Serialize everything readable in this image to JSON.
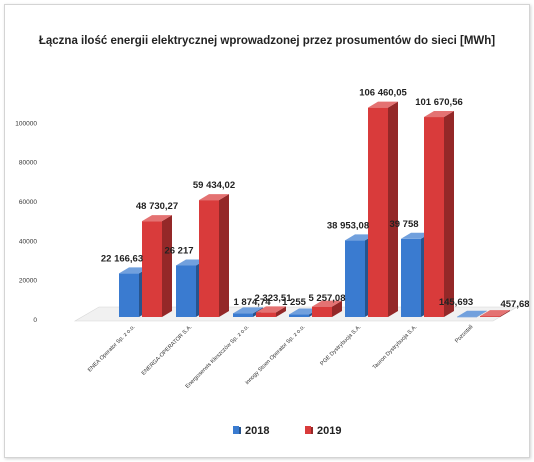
{
  "chart_data": {
    "type": "bar",
    "title": "Łączna ilość energii elektrycznej wprowadzonej przez prosumentów do sieci [MWh]",
    "categories": [
      "ENEA Operator Sp. z o.o.",
      "ENERGA-OPERATOR S.A.",
      "Energoserwis Kleszczów Sp. z o.o.",
      "innogy Stoen Operator Sp. z o.o.",
      "PGE Dystrybucja S.A.",
      "Tauron Dystrybucja S.A.",
      "Pozostali"
    ],
    "series": [
      {
        "name": "2018",
        "color": "#3a7bd0",
        "values": [
          22166.63,
          26217,
          1874.74,
          1255,
          38953.08,
          39758,
          145.693
        ],
        "labels": [
          "22 166,63",
          "26 217",
          "1 874,74",
          "1 255",
          "38 953,08",
          "39 758",
          "145,693"
        ]
      },
      {
        "name": "2019",
        "color": "#d93b3b",
        "values": [
          48730.27,
          59434.02,
          2323.51,
          5257.08,
          106460.05,
          101670.56,
          457.68
        ],
        "labels": [
          "48 730,27",
          "59 434,02",
          "2 323,51",
          "5 257,08",
          "106 460,05",
          "101 670,56",
          "457,68"
        ]
      }
    ],
    "yticks": [
      "0",
      "20000",
      "40000",
      "60000",
      "80000",
      "100000"
    ],
    "ylim": [
      0,
      120000
    ],
    "legend_position": "bottom",
    "grid": false,
    "xlabel": "",
    "ylabel": ""
  }
}
